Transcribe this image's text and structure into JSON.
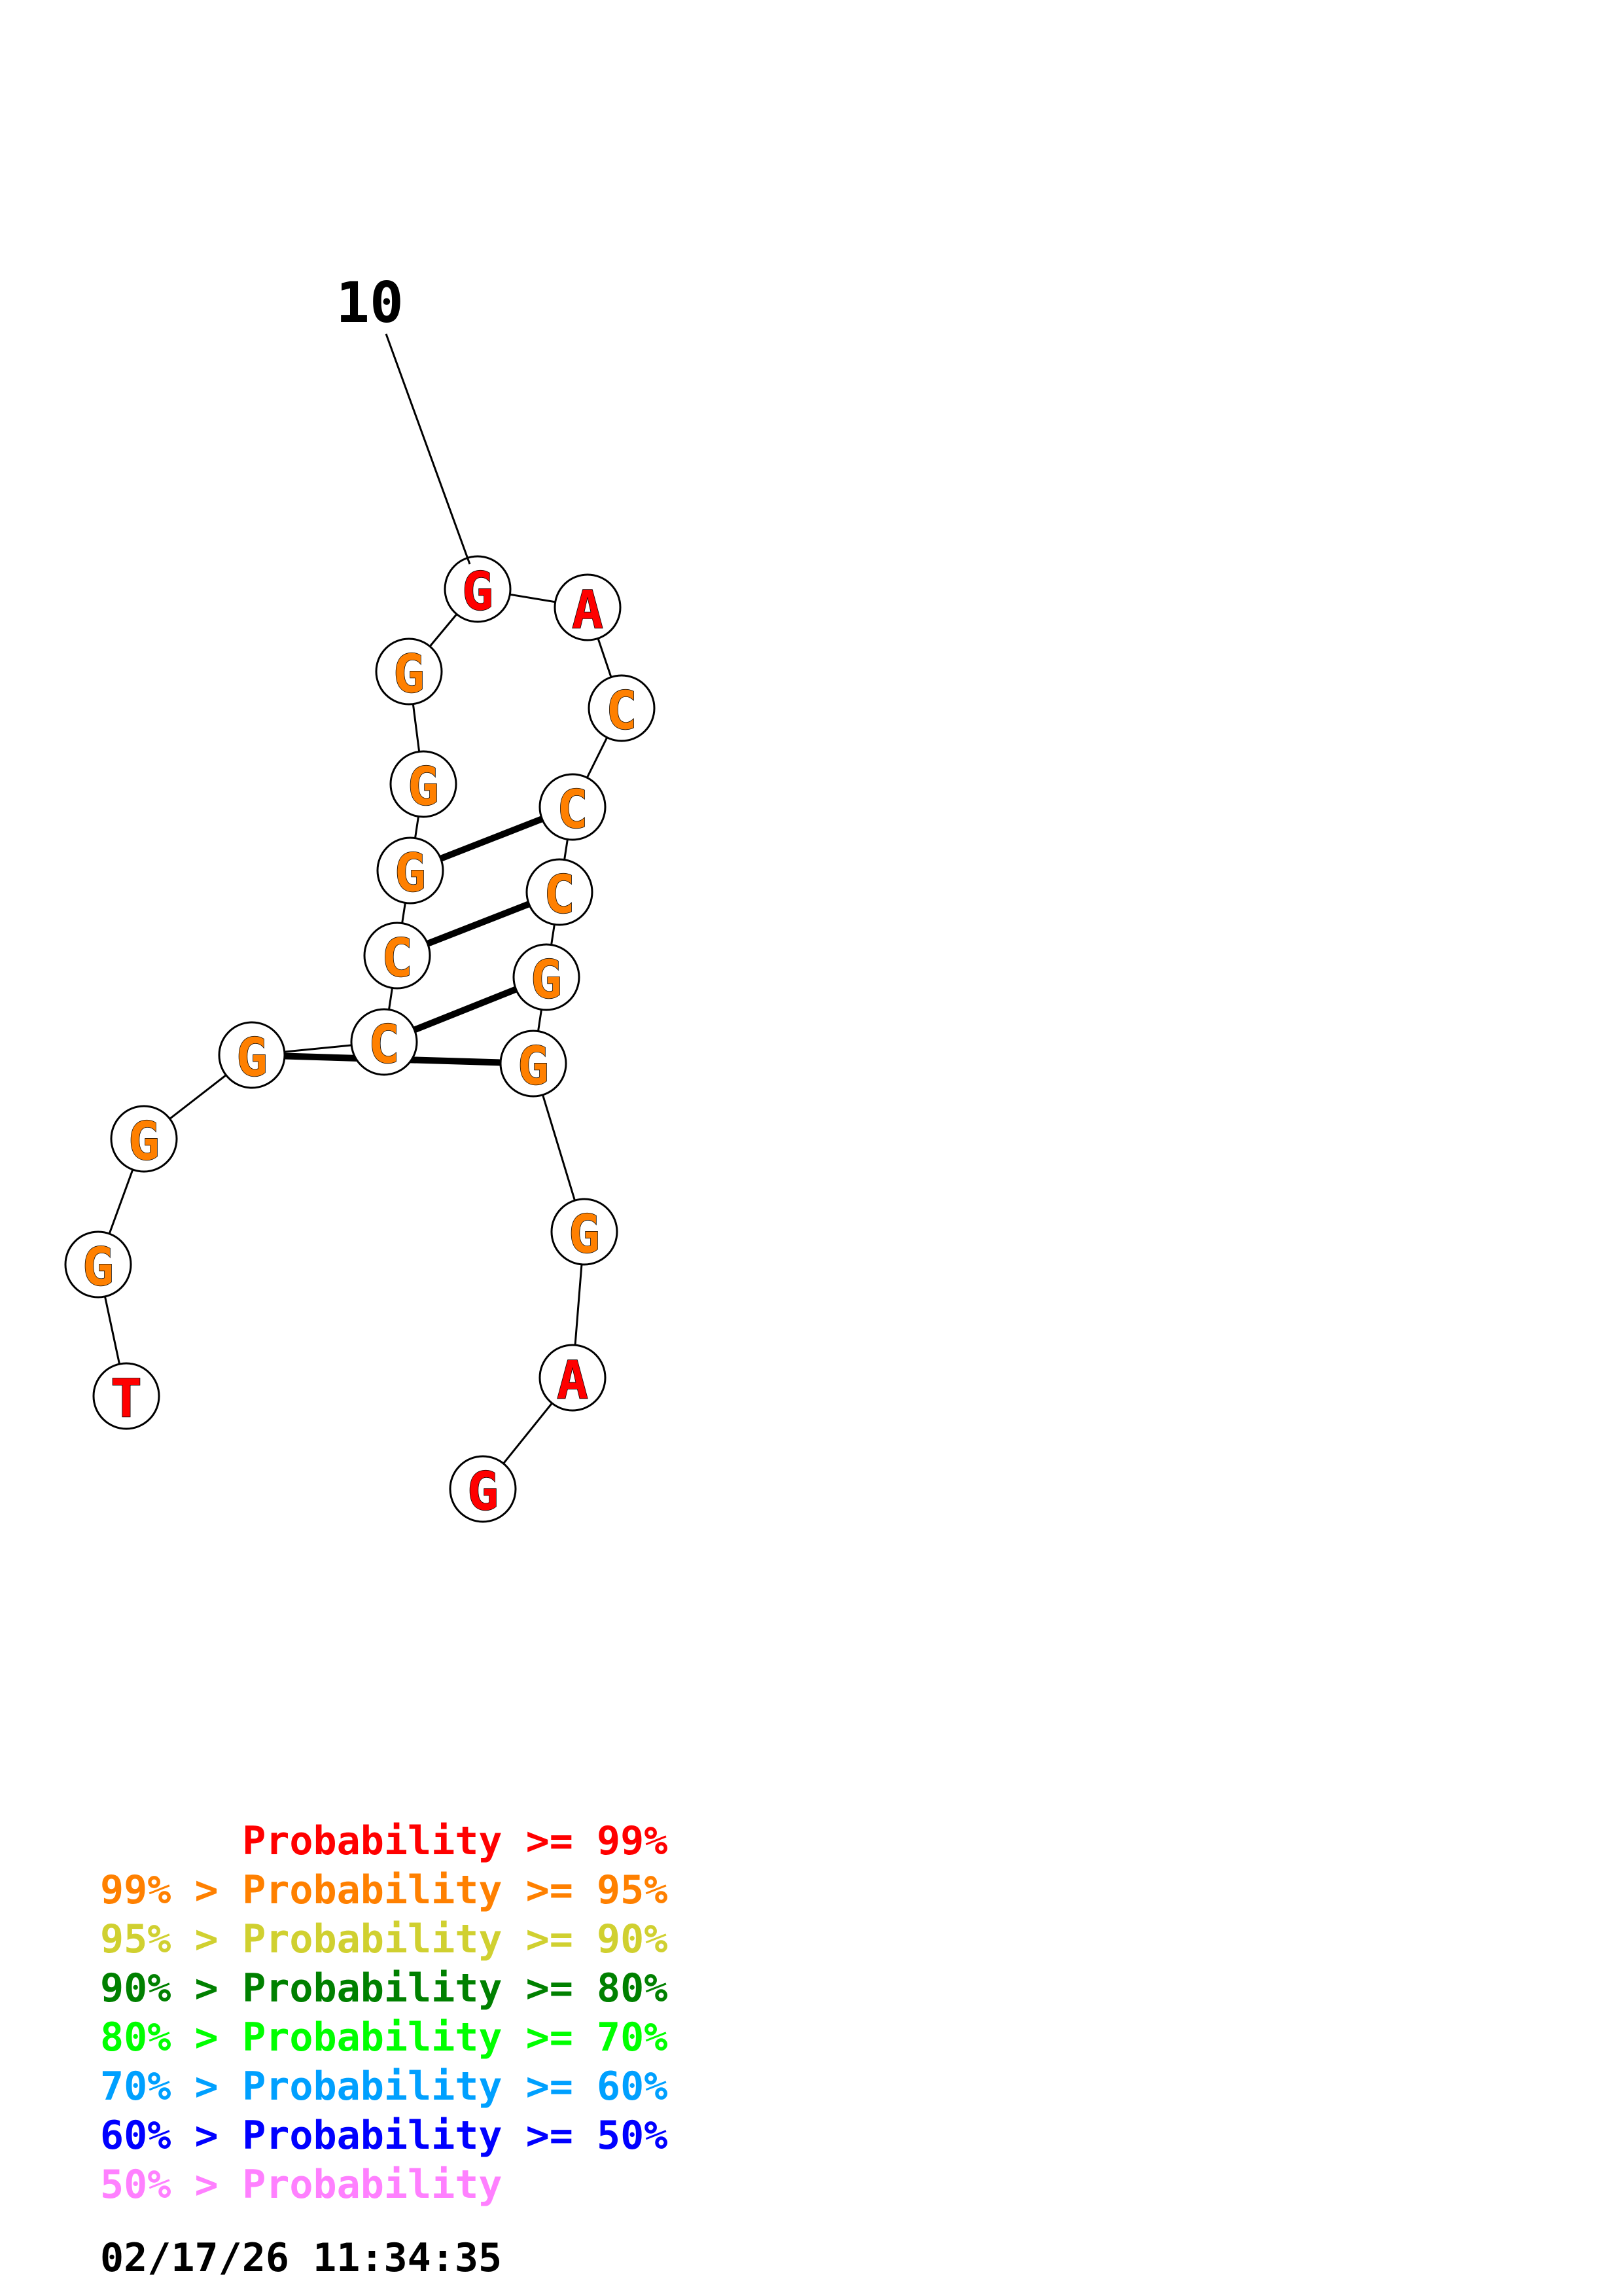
{
  "structure": {
    "index_label": "10",
    "nucleotides": [
      {
        "letter": "T",
        "color": "#ff0000"
      },
      {
        "letter": "G",
        "color": "#ff8000"
      },
      {
        "letter": "G",
        "color": "#ff8000"
      },
      {
        "letter": "G",
        "color": "#ff8000"
      },
      {
        "letter": "C",
        "color": "#ff8000"
      },
      {
        "letter": "C",
        "color": "#ff8000"
      },
      {
        "letter": "G",
        "color": "#ff8000"
      },
      {
        "letter": "G",
        "color": "#ff8000"
      },
      {
        "letter": "G",
        "color": "#ff8000"
      },
      {
        "letter": "G",
        "color": "#ff0000"
      },
      {
        "letter": "A",
        "color": "#ff0000"
      },
      {
        "letter": "C",
        "color": "#ff8000"
      },
      {
        "letter": "C",
        "color": "#ff8000"
      },
      {
        "letter": "C",
        "color": "#ff8000"
      },
      {
        "letter": "G",
        "color": "#ff8000"
      },
      {
        "letter": "G",
        "color": "#ff8000"
      },
      {
        "letter": "G",
        "color": "#ff8000"
      },
      {
        "letter": "A",
        "color": "#ff0000"
      },
      {
        "letter": "G",
        "color": "#ff0000"
      }
    ],
    "pairs": [
      [
        6,
        12
      ],
      [
        5,
        13
      ],
      [
        4,
        14
      ],
      [
        3,
        15
      ]
    ]
  },
  "legend": [
    {
      "prefix": "",
      "label": "Probability >= 99%",
      "color": "#ff0000"
    },
    {
      "prefix": "99% > ",
      "label": "Probability >= 95%",
      "color": "#ff8000"
    },
    {
      "prefix": "95% > ",
      "label": "Probability >= 90%",
      "color": "#d0d030"
    },
    {
      "prefix": "90% > ",
      "label": "Probability >= 80%",
      "color": "#008000"
    },
    {
      "prefix": "80% > ",
      "label": "Probability >= 70%",
      "color": "#00ff00"
    },
    {
      "prefix": "70% > ",
      "label": "Probability >= 60%",
      "color": "#00a0ff"
    },
    {
      "prefix": "60% > ",
      "label": "Probability >= 50%",
      "color": "#0000ff"
    },
    {
      "prefix": "50% > ",
      "label": "Probability",
      "color": "#ff80ff"
    }
  ],
  "timestamp": "02/17/26 11:34:35"
}
